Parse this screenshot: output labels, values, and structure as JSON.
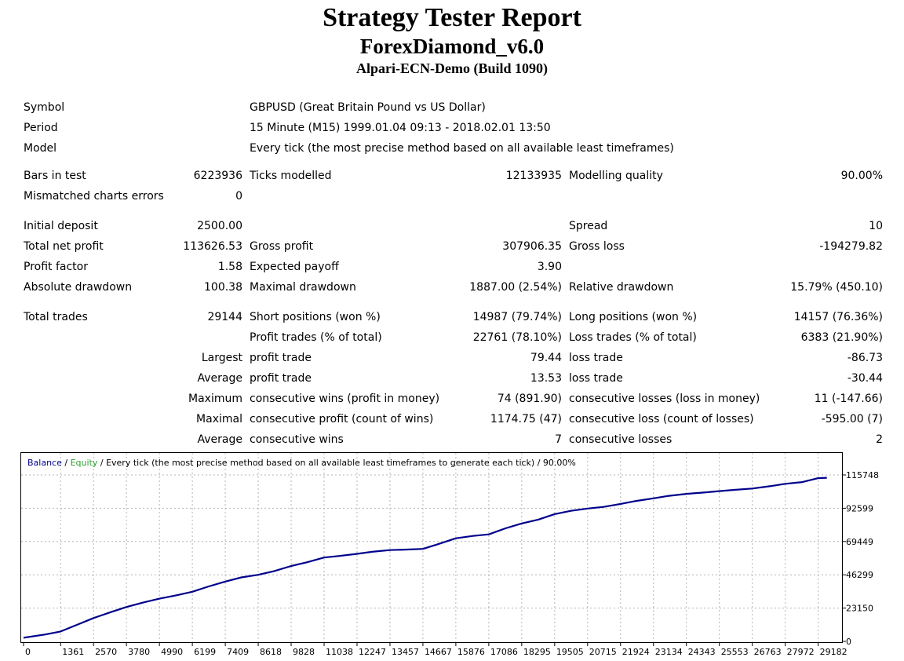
{
  "report": {
    "title": "Strategy Tester Report",
    "expert": "ForexDiamond_v6.0",
    "server": "Alpari-ECN-Demo (Build 1090)"
  },
  "info": {
    "symbol_label": "Symbol",
    "symbol_value": "GBPUSD (Great Britain Pound vs US Dollar)",
    "period_label": "Period",
    "period_value": "15 Minute (M15) 1999.01.04 09:13 - 2018.02.01 13:50",
    "model_label": "Model",
    "model_value": "Every tick (the most precise method based on all available least timeframes)"
  },
  "stats": {
    "bars_label": "Bars in test",
    "bars_value": "6223936",
    "ticks_label": "Ticks modelled",
    "ticks_value": "12133935",
    "quality_label": "Modelling quality",
    "quality_value": "90.00%",
    "mismatch_label": "Mismatched charts errors",
    "mismatch_value": "0",
    "deposit_label": "Initial deposit",
    "deposit_value": "2500.00",
    "spread_label": "Spread",
    "spread_value": "10",
    "net_label": "Total net profit",
    "net_value": "113626.53",
    "gross_profit_label": "Gross profit",
    "gross_profit_value": "307906.35",
    "gross_loss_label": "Gross loss",
    "gross_loss_value": "-194279.82",
    "pf_label": "Profit factor",
    "pf_value": "1.58",
    "payoff_label": "Expected payoff",
    "payoff_value": "3.90",
    "abs_dd_label": "Absolute drawdown",
    "abs_dd_value": "100.38",
    "max_dd_label": "Maximal drawdown",
    "max_dd_value": "1887.00 (2.54%)",
    "rel_dd_label": "Relative drawdown",
    "rel_dd_value": "15.79% (450.10)",
    "trades_label": "Total trades",
    "trades_value": "29144",
    "short_label": "Short positions (won %)",
    "short_value": "14987 (79.74%)",
    "long_label": "Long positions (won %)",
    "long_value": "14157 (76.36%)",
    "profit_trades_label": "Profit trades (% of total)",
    "profit_trades_value": "22761 (78.10%)",
    "loss_trades_label": "Loss trades (% of total)",
    "loss_trades_value": "6383 (21.90%)",
    "largest_label": "Largest",
    "largest_profit_label": "profit trade",
    "largest_profit_value": "79.44",
    "largest_loss_label": "loss trade",
    "largest_loss_value": "-86.73",
    "average_label": "Average",
    "average_profit_label": "profit trade",
    "average_profit_value": "13.53",
    "average_loss_label": "loss trade",
    "average_loss_value": "-30.44",
    "maximum_label": "Maximum",
    "max_wins_label": "consecutive wins (profit in money)",
    "max_wins_value": "74 (891.90)",
    "max_losses_label": "consecutive losses (loss in money)",
    "max_losses_value": "11 (-147.66)",
    "maximal_label": "Maximal",
    "maximal_profit_label": "consecutive profit (count of wins)",
    "maximal_profit_value": "1174.75 (47)",
    "maximal_loss_label": "consecutive loss (count of losses)",
    "maximal_loss_value": "-595.00 (7)",
    "avg2_label": "Average",
    "avg_wins_label": "consecutive wins",
    "avg_wins_value": "7",
    "avg_losses_label": "consecutive losses",
    "avg_losses_value": "2"
  },
  "chart_data": {
    "type": "line",
    "legend_balance": "Balance",
    "legend_sep1": " / ",
    "legend_equity": "Equity",
    "legend_rest": " / Every tick (the most precise method based on all available least timeframes to generate each tick) / 90.00%",
    "x_ticks": [
      0,
      1361,
      2570,
      3780,
      4990,
      6199,
      7409,
      8618,
      9828,
      11038,
      12247,
      13457,
      14667,
      15876,
      17086,
      18295,
      19505,
      20715,
      21924,
      23134,
      24343,
      25553,
      26763,
      27972,
      29182
    ],
    "y_ticks": [
      0,
      23150,
      46299,
      69449,
      92599,
      115748
    ],
    "xlim": [
      0,
      30000
    ],
    "ylim": [
      0,
      115748
    ],
    "grid": true,
    "colors": {
      "balance": "#00008b",
      "equity": "#2ca02c",
      "grid": "#b4b4b4"
    },
    "series": [
      {
        "name": "Balance",
        "x": [
          0,
          800,
          1361,
          2000,
          2570,
          3200,
          3780,
          4400,
          4990,
          5600,
          6199,
          6800,
          7409,
          8000,
          8618,
          9200,
          9828,
          10400,
          11038,
          11600,
          12247,
          12800,
          13457,
          14000,
          14667,
          15200,
          15876,
          16500,
          17086,
          17700,
          18295,
          18900,
          19505,
          20100,
          20715,
          21300,
          21924,
          22500,
          23134,
          23700,
          24343,
          24900,
          25553,
          26100,
          26763,
          27400,
          27972,
          28600,
          29182,
          29500
        ],
        "y": [
          2500,
          4800,
          6900,
          11800,
          16200,
          20300,
          23900,
          27100,
          29700,
          32000,
          34500,
          38200,
          41600,
          44500,
          46300,
          48800,
          52400,
          55000,
          58300,
          59400,
          60900,
          62300,
          63500,
          63800,
          64300,
          67500,
          71700,
          73300,
          74400,
          78600,
          82000,
          84700,
          88500,
          90800,
          92400,
          93500,
          95600,
          97700,
          99500,
          101200,
          102600,
          103400,
          104500,
          105400,
          106300,
          107900,
          109600,
          110800,
          113500,
          113800
        ]
      }
    ]
  }
}
